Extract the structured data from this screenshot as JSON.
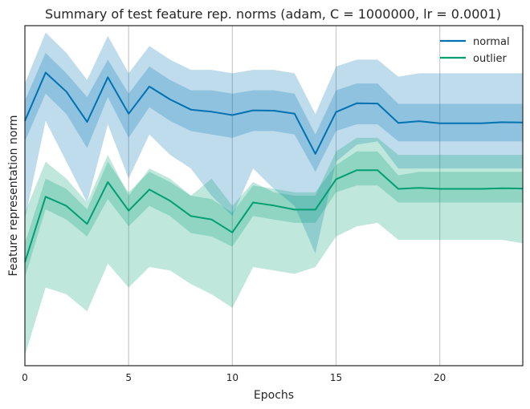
{
  "chart_data": {
    "type": "line",
    "title": "Summary of test feature rep. norms (adam, C = 1000000, lr = 0.0001)",
    "xlabel": "Epochs",
    "ylabel": "Feature representation norm",
    "xlim": [
      0,
      24
    ],
    "ylim": [
      0,
      1
    ],
    "x_ticks": [
      0,
      5,
      10,
      15,
      20
    ],
    "grid": "x-only",
    "legend_position": "top-right",
    "x": [
      0,
      1,
      2,
      3,
      4,
      5,
      6,
      7,
      8,
      9,
      10,
      11,
      12,
      13,
      14,
      15,
      16,
      17,
      18,
      19,
      20,
      21,
      22,
      23,
      24
    ],
    "series": [
      {
        "name": "normal",
        "color": "#0072b2",
        "mean": [
          0.72,
          0.862,
          0.806,
          0.717,
          0.848,
          0.741,
          0.821,
          0.783,
          0.753,
          0.747,
          0.737,
          0.751,
          0.75,
          0.741,
          0.623,
          0.746,
          0.772,
          0.771,
          0.714,
          0.719,
          0.713,
          0.713,
          0.713,
          0.716,
          0.715
        ],
        "inner_lo": [
          0.66,
          0.8,
          0.74,
          0.64,
          0.79,
          0.67,
          0.76,
          0.72,
          0.69,
          0.68,
          0.67,
          0.69,
          0.69,
          0.68,
          0.57,
          0.69,
          0.71,
          0.71,
          0.66,
          0.66,
          0.66,
          0.66,
          0.66,
          0.66,
          0.66
        ],
        "inner_hi": [
          0.78,
          0.92,
          0.86,
          0.79,
          0.9,
          0.8,
          0.88,
          0.84,
          0.81,
          0.81,
          0.8,
          0.81,
          0.81,
          0.8,
          0.68,
          0.81,
          0.83,
          0.83,
          0.77,
          0.77,
          0.77,
          0.77,
          0.77,
          0.77,
          0.77
        ],
        "outer_lo": [
          0.43,
          0.72,
          0.6,
          0.48,
          0.71,
          0.55,
          0.68,
          0.62,
          0.58,
          0.5,
          0.44,
          0.58,
          0.52,
          0.47,
          0.33,
          0.6,
          0.65,
          0.66,
          0.58,
          0.58,
          0.58,
          0.58,
          0.58,
          0.58,
          0.58
        ],
        "outer_hi": [
          0.83,
          0.98,
          0.92,
          0.84,
          0.97,
          0.86,
          0.94,
          0.9,
          0.87,
          0.87,
          0.86,
          0.87,
          0.87,
          0.86,
          0.74,
          0.88,
          0.9,
          0.9,
          0.85,
          0.86,
          0.86,
          0.86,
          0.86,
          0.86,
          0.86
        ]
      },
      {
        "name": "outlier",
        "color": "#009e73",
        "mean": [
          0.304,
          0.497,
          0.47,
          0.417,
          0.54,
          0.456,
          0.518,
          0.485,
          0.44,
          0.43,
          0.392,
          0.48,
          0.471,
          0.459,
          0.459,
          0.548,
          0.575,
          0.575,
          0.52,
          0.523,
          0.52,
          0.52,
          0.52,
          0.522,
          0.521
        ],
        "inner_lo": [
          0.26,
          0.46,
          0.43,
          0.38,
          0.49,
          0.41,
          0.47,
          0.44,
          0.39,
          0.38,
          0.35,
          0.44,
          0.43,
          0.42,
          0.42,
          0.51,
          0.53,
          0.53,
          0.48,
          0.48,
          0.48,
          0.48,
          0.48,
          0.48,
          0.48
        ],
        "inner_hi": [
          0.36,
          0.55,
          0.52,
          0.46,
          0.6,
          0.51,
          0.57,
          0.54,
          0.5,
          0.49,
          0.45,
          0.53,
          0.52,
          0.51,
          0.51,
          0.59,
          0.63,
          0.63,
          0.56,
          0.57,
          0.57,
          0.57,
          0.57,
          0.57,
          0.57
        ],
        "outer_lo": [
          0.03,
          0.23,
          0.21,
          0.16,
          0.3,
          0.23,
          0.29,
          0.28,
          0.24,
          0.21,
          0.17,
          0.29,
          0.28,
          0.27,
          0.29,
          0.38,
          0.41,
          0.42,
          0.37,
          0.37,
          0.37,
          0.37,
          0.37,
          0.37,
          0.36
        ],
        "outer_hi": [
          0.45,
          0.6,
          0.55,
          0.48,
          0.62,
          0.5,
          0.58,
          0.55,
          0.5,
          0.55,
          0.47,
          0.54,
          0.51,
          0.5,
          0.5,
          0.63,
          0.67,
          0.67,
          0.62,
          0.62,
          0.62,
          0.62,
          0.62,
          0.62,
          0.62
        ]
      }
    ]
  }
}
